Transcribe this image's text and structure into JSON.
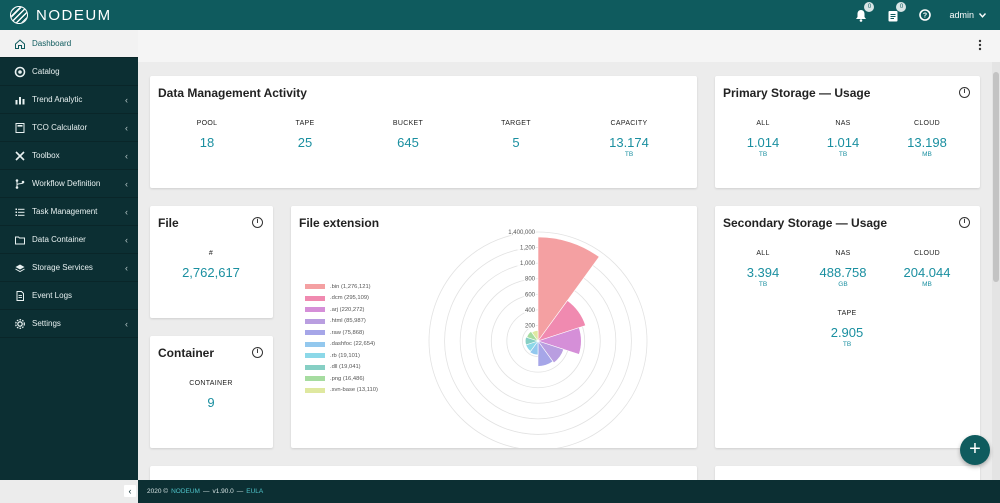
{
  "app": {
    "logo_text": "NODEUM",
    "user": "admin",
    "notif_count": "0",
    "tasks_count": "0"
  },
  "sidebar": {
    "items": [
      {
        "label": "Dashboard",
        "icon": "home-icon",
        "active": true,
        "chevron": false
      },
      {
        "label": "Catalog",
        "icon": "catalog-icon",
        "chevron": false
      },
      {
        "label": "Trend Analytic",
        "icon": "bar-chart-icon",
        "chevron": true
      },
      {
        "label": "TCO Calculator",
        "icon": "calculator-icon",
        "chevron": true
      },
      {
        "label": "Toolbox",
        "icon": "tools-icon",
        "chevron": true
      },
      {
        "label": "Workflow Definition",
        "icon": "workflow-icon",
        "chevron": true
      },
      {
        "label": "Task Management",
        "icon": "task-list-icon",
        "chevron": true
      },
      {
        "label": "Data Container",
        "icon": "folder-icon",
        "chevron": true
      },
      {
        "label": "Storage Services",
        "icon": "storage-icon",
        "chevron": true
      },
      {
        "label": "Event Logs",
        "icon": "document-icon",
        "chevron": false
      },
      {
        "label": "Settings",
        "icon": "gear-icon",
        "chevron": true
      }
    ]
  },
  "dma": {
    "title": "Data Management Activity",
    "stats": [
      {
        "label": "POOL",
        "value": "18",
        "unit": ""
      },
      {
        "label": "TAPE",
        "value": "25",
        "unit": ""
      },
      {
        "label": "BUCKET",
        "value": "645",
        "unit": ""
      },
      {
        "label": "TARGET",
        "value": "5",
        "unit": ""
      },
      {
        "label": "CAPACITY",
        "value": "13.174",
        "unit": "TB"
      }
    ]
  },
  "primary": {
    "title": "Primary Storage — Usage",
    "stats": [
      {
        "label": "ALL",
        "value": "1.014",
        "unit": "TB"
      },
      {
        "label": "NAS",
        "value": "1.014",
        "unit": "TB"
      },
      {
        "label": "CLOUD",
        "value": "13.198",
        "unit": "MB"
      }
    ]
  },
  "file": {
    "title": "File",
    "label": "#",
    "value": "2,762,617"
  },
  "container": {
    "title": "Container",
    "label": "CONTAINER",
    "value": "9"
  },
  "secondary": {
    "title": "Secondary Storage — Usage",
    "stats": [
      {
        "label": "ALL",
        "value": "3.394",
        "unit": "TB"
      },
      {
        "label": "NAS",
        "value": "488.758",
        "unit": "GB"
      },
      {
        "label": "CLOUD",
        "value": "204.044",
        "unit": "MB"
      },
      {
        "label": "TAPE",
        "value": "2.905",
        "unit": "TB"
      }
    ]
  },
  "file_extension": {
    "title": "File extension"
  },
  "chart_data": {
    "type": "polar-area",
    "title": "File extension",
    "categories": [
      ".bin",
      ".dcm",
      ".arj",
      ".html",
      ".raw",
      ".dashfoc",
      ".rb",
      ".dll",
      ".png",
      ".svn-base"
    ],
    "values": [
      1276121,
      295109,
      220272,
      85987,
      75868,
      22654,
      19101,
      19041,
      16486,
      13110
    ],
    "legend_labels": [
      ".bin (1,276,121)",
      ".dcm (295,109)",
      ".arj (220,272)",
      ".html (85,987)",
      ".raw (75,868)",
      ".dashfoc (22,654)",
      ".rb (19,101)",
      ".dll (19,041)",
      ".png (16,486)",
      ".svn-base (13,110)"
    ],
    "colors": [
      "#f4a0a2",
      "#f08ab0",
      "#d58fd8",
      "#b99ee0",
      "#a6a6e8",
      "#93c8ee",
      "#8cd8e8",
      "#86cfc4",
      "#a6dca0",
      "#dfe8a0"
    ],
    "rmax": 1400000,
    "ticks": [
      "200",
      "400",
      "600",
      "800",
      "1,000",
      "1,200",
      "1,400,000"
    ],
    "tick_values": [
      200000,
      400000,
      600000,
      800000,
      1000000,
      1200000,
      1400000
    ],
    "legend_position": "left"
  },
  "footer": {
    "copyright": "2020 ©",
    "brand": "NODEUM",
    "version": "v1.90.0",
    "eula": "EULA"
  }
}
